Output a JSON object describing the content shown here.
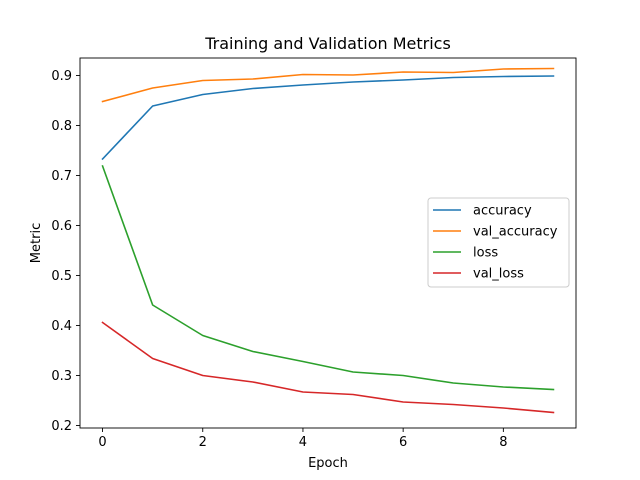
{
  "chart_data": {
    "type": "line",
    "title": "Training and Validation Metrics",
    "xlabel": "Epoch",
    "ylabel": "Metric",
    "xlim": [
      -0.45,
      9.45
    ],
    "ylim": [
      0.195,
      0.935
    ],
    "xticks": [
      0,
      2,
      4,
      6,
      8
    ],
    "yticks": [
      0.2,
      0.3,
      0.4,
      0.5,
      0.6,
      0.7,
      0.8,
      0.9
    ],
    "grid": false,
    "legend_position": "center-right",
    "x": [
      0,
      1,
      2,
      3,
      4,
      5,
      6,
      7,
      8,
      9
    ],
    "series": [
      {
        "name": "accuracy",
        "color": "#1f77b4",
        "values": [
          0.733,
          0.839,
          0.862,
          0.874,
          0.881,
          0.887,
          0.891,
          0.896,
          0.898,
          0.899
        ]
      },
      {
        "name": "val_accuracy",
        "color": "#ff7f0e",
        "values": [
          0.848,
          0.875,
          0.89,
          0.893,
          0.902,
          0.901,
          0.907,
          0.906,
          0.913,
          0.914
        ]
      },
      {
        "name": "loss",
        "color": "#2ca02c",
        "values": [
          0.719,
          0.441,
          0.38,
          0.348,
          0.328,
          0.307,
          0.3,
          0.285,
          0.277,
          0.272
        ]
      },
      {
        "name": "val_loss",
        "color": "#d62728",
        "values": [
          0.406,
          0.334,
          0.3,
          0.287,
          0.267,
          0.262,
          0.247,
          0.242,
          0.235,
          0.226
        ]
      }
    ]
  }
}
